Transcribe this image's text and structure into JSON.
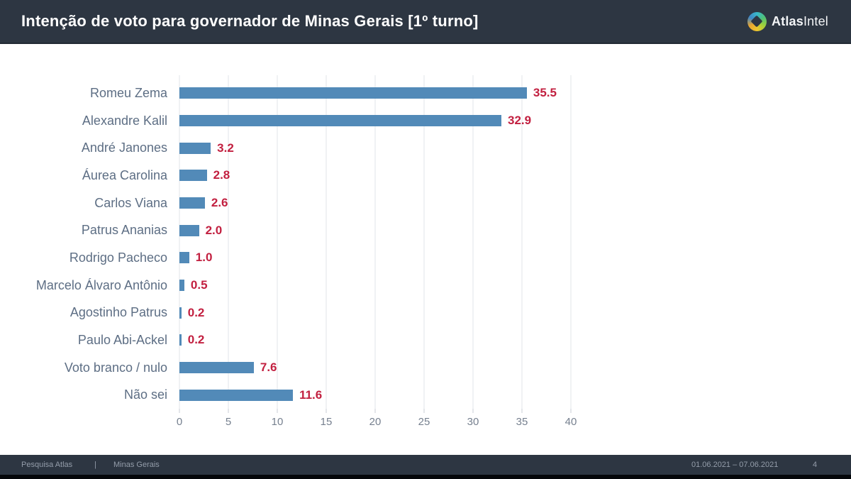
{
  "header": {
    "title": "Intenção de voto para governador de Minas Gerais [1º turno]",
    "logo": {
      "bold": "Atlas",
      "light": "Intel"
    }
  },
  "chart_data": {
    "type": "bar",
    "orientation": "horizontal",
    "title": "Intenção de voto para governador de Minas Gerais [1º turno]",
    "categories": [
      "Romeu Zema",
      "Alexandre Kalil",
      "André Janones",
      "Áurea Carolina",
      "Carlos Viana",
      "Patrus Ananias",
      "Rodrigo Pacheco",
      "Marcelo Álvaro Antônio",
      "Agostinho Patrus",
      "Paulo Abi-Ackel",
      "Voto branco / nulo",
      "Não sei"
    ],
    "values": [
      35.5,
      32.9,
      3.2,
      2.8,
      2.6,
      2.0,
      1.0,
      0.5,
      0.2,
      0.2,
      7.6,
      11.6
    ],
    "value_labels": [
      "35.5",
      "32.9",
      "3.2",
      "2.8",
      "2.6",
      "2.0",
      "1.0",
      "0.5",
      "0.2",
      "0.2",
      "7.6",
      "11.6"
    ],
    "xlabel": "",
    "ylabel": "",
    "xlim": [
      0,
      40
    ],
    "xticks": [
      0,
      5,
      10,
      15,
      20,
      25,
      30,
      35,
      40
    ],
    "grid": true,
    "legend": false,
    "bar_color": "#528ab8",
    "value_label_color": "#c22040",
    "category_label_color": "#5d6e84"
  },
  "footer": {
    "source": "Pesquisa Atlas",
    "separator": "|",
    "region": "Minas Gerais",
    "date_range": "01.06.2021 – 07.06.2021",
    "page_number": "4"
  }
}
